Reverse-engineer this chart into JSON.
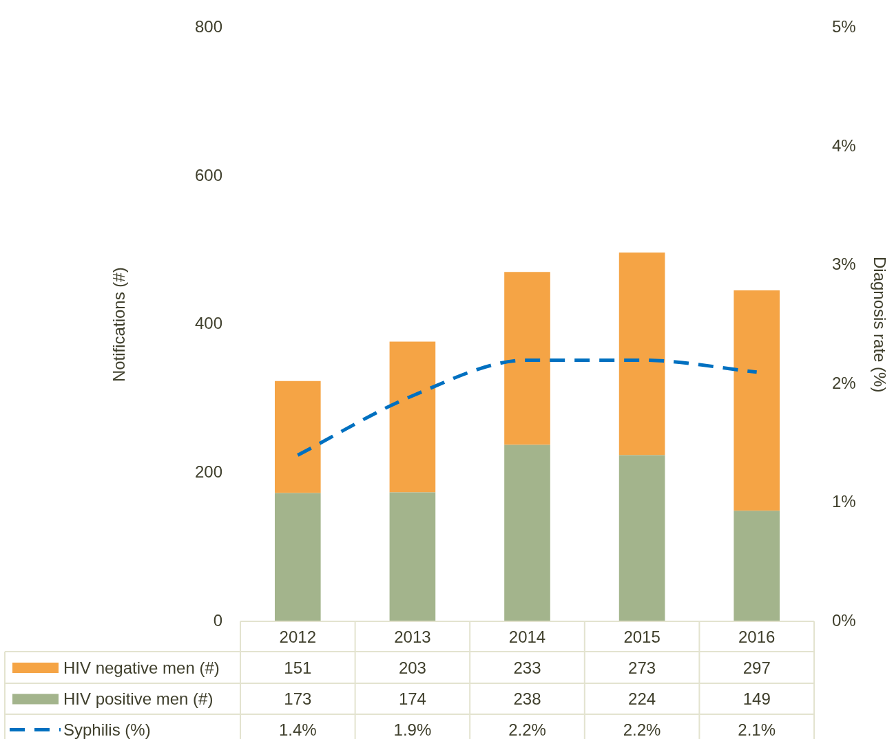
{
  "chart_data": {
    "type": "bar",
    "stacked": true,
    "categories": [
      "2012",
      "2013",
      "2014",
      "2015",
      "2016"
    ],
    "series": [
      {
        "name": "HIV positive men (#)",
        "color": "#a3b48c",
        "values": [
          173,
          174,
          238,
          224,
          149
        ]
      },
      {
        "name": "HIV negative men (#)",
        "color": "#f5a445",
        "values": [
          151,
          203,
          233,
          273,
          297
        ]
      },
      {
        "name": "Syphilis (%)",
        "type": "line",
        "axis": "y2",
        "color": "#0070c0",
        "line_style": "dashed",
        "marker": "none",
        "values": [
          1.4,
          1.9,
          2.2,
          2.2,
          2.1
        ],
        "value_labels": [
          "1.4%",
          "1.9%",
          "2.2%",
          "2.2%",
          "2.1%"
        ]
      }
    ],
    "ylabel": "Notifications (#)",
    "y2label": "Diagnosis rate (%)",
    "ylim": [
      0,
      800
    ],
    "yticks": [
      0,
      200,
      400,
      600,
      800
    ],
    "y2lim": [
      0,
      5
    ],
    "y2ticks": [
      {
        "value": 0,
        "label": "0%"
      },
      {
        "value": 1,
        "label": "1%"
      },
      {
        "value": 2,
        "label": "2%"
      },
      {
        "value": 3,
        "label": "3%"
      },
      {
        "value": 4,
        "label": "4%"
      },
      {
        "value": 5,
        "label": "5%"
      }
    ],
    "data_labels": true,
    "legend": "bottom",
    "grid": false
  }
}
